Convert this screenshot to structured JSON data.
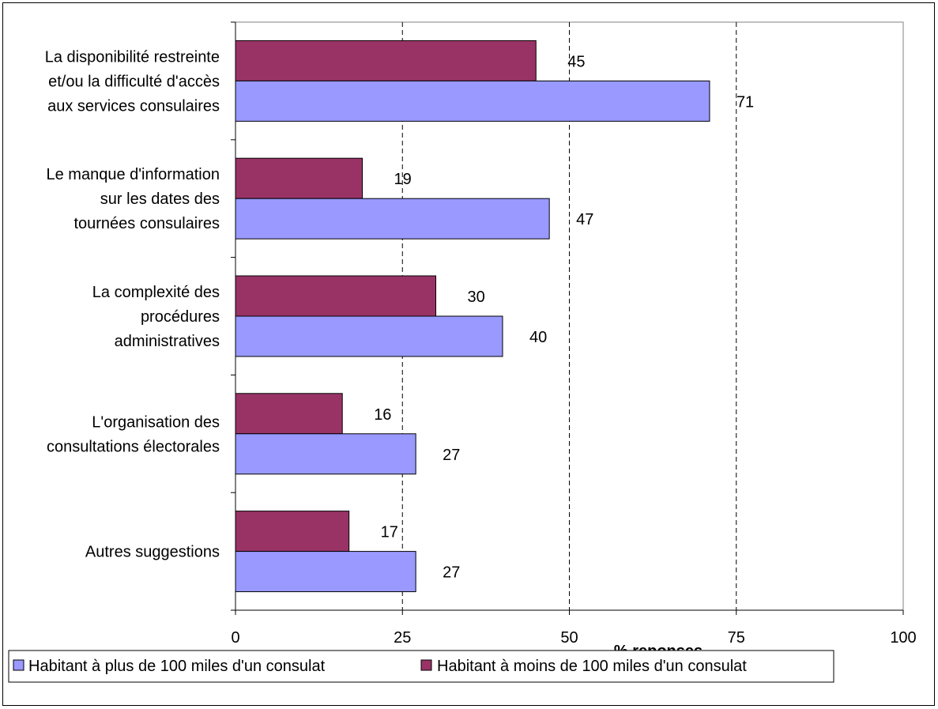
{
  "chart_data": {
    "type": "bar",
    "orientation": "horizontal",
    "categories": [
      [
        "La disponibilité restreinte",
        "et/ou la difficulté d'accès",
        "aux services consulaires"
      ],
      [
        "Le manque d'information",
        "sur les dates des",
        "tournées consulaires"
      ],
      [
        "La complexité des",
        "procédures",
        "administratives"
      ],
      [
        "L'organisation des",
        "consultations électorales"
      ],
      [
        "Autres suggestions"
      ]
    ],
    "series": [
      {
        "name": "Habitant à moins de 100 miles d'un consulat",
        "color": "#993366",
        "values": [
          45,
          19,
          30,
          16,
          17
        ]
      },
      {
        "name": "Habitant à plus de 100 miles d'un consulat",
        "color": "#9999ff",
        "values": [
          71,
          47,
          40,
          27,
          27
        ]
      }
    ],
    "xlim": [
      0,
      100
    ],
    "ticks": [
      0,
      25,
      50,
      75,
      100
    ],
    "xlabel": "% reponses",
    "grid": "dashed vertical",
    "legend": {
      "placement": "bottom-left",
      "order": [
        1,
        0
      ]
    }
  }
}
